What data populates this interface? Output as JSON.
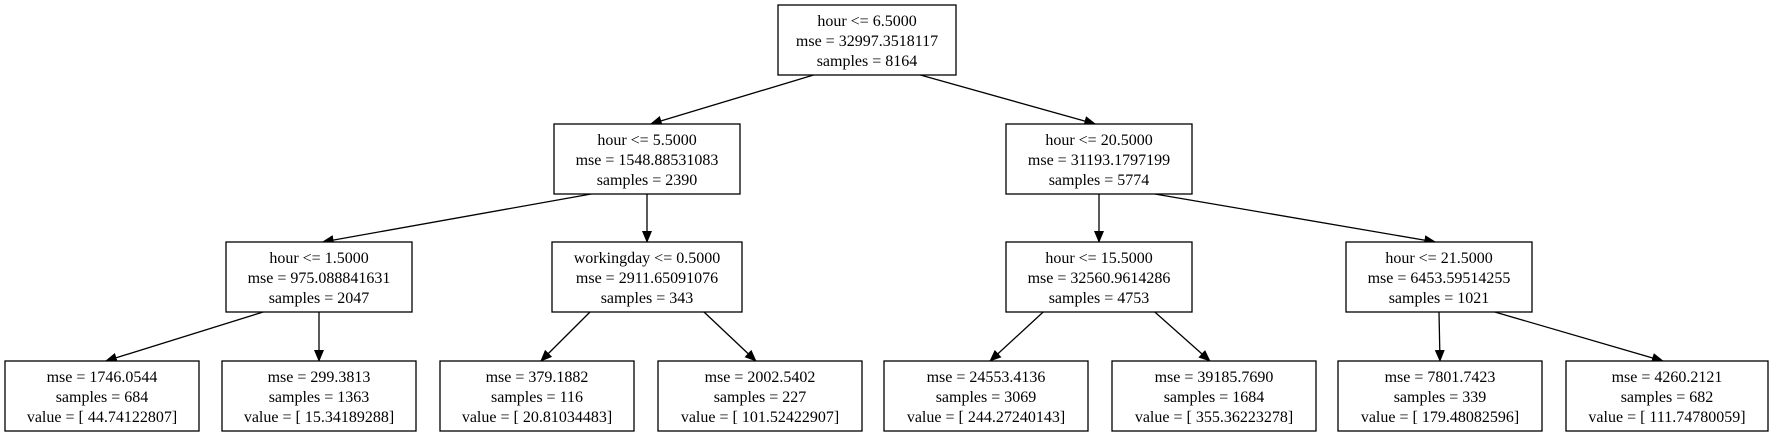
{
  "tree": {
    "nodes": [
      {
        "id": "n0",
        "lines": [
          "hour <= 6.5000",
          "mse = 32997.3518117",
          "samples = 8164"
        ]
      },
      {
        "id": "n1",
        "lines": [
          "hour <= 5.5000",
          "mse = 1548.88531083",
          "samples = 2390"
        ]
      },
      {
        "id": "n2",
        "lines": [
          "hour <= 20.5000",
          "mse = 31193.1797199",
          "samples = 5774"
        ]
      },
      {
        "id": "n3",
        "lines": [
          "hour <= 1.5000",
          "mse = 975.088841631",
          "samples = 2047"
        ]
      },
      {
        "id": "n4",
        "lines": [
          "workingday <= 0.5000",
          "mse = 2911.65091076",
          "samples = 343"
        ]
      },
      {
        "id": "n5",
        "lines": [
          "hour <= 15.5000",
          "mse = 32560.9614286",
          "samples = 4753"
        ]
      },
      {
        "id": "n6",
        "lines": [
          "hour <= 21.5000",
          "mse = 6453.59514255",
          "samples = 1021"
        ]
      },
      {
        "id": "n7",
        "lines": [
          "mse = 1746.0544",
          "samples = 684",
          "value = [ 44.74122807]"
        ]
      },
      {
        "id": "n8",
        "lines": [
          "mse = 299.3813",
          "samples = 1363",
          "value = [ 15.34189288]"
        ]
      },
      {
        "id": "n9",
        "lines": [
          "mse = 379.1882",
          "samples = 116",
          "value = [ 20.81034483]"
        ]
      },
      {
        "id": "n10",
        "lines": [
          "mse = 2002.5402",
          "samples = 227",
          "value = [ 101.52422907]"
        ]
      },
      {
        "id": "n11",
        "lines": [
          "mse = 24553.4136",
          "samples = 3069",
          "value = [ 244.27240143]"
        ]
      },
      {
        "id": "n12",
        "lines": [
          "mse = 39185.7690",
          "samples = 1684",
          "value = [ 355.36223278]"
        ]
      },
      {
        "id": "n13",
        "lines": [
          "mse = 7801.7423",
          "samples = 339",
          "value = [ 179.48082596]"
        ]
      },
      {
        "id": "n14",
        "lines": [
          "mse = 4260.2121",
          "samples = 682",
          "value = [ 111.74780059]"
        ]
      }
    ],
    "edges": [
      [
        "n0",
        "n1"
      ],
      [
        "n0",
        "n2"
      ],
      [
        "n1",
        "n3"
      ],
      [
        "n1",
        "n4"
      ],
      [
        "n2",
        "n5"
      ],
      [
        "n2",
        "n6"
      ],
      [
        "n3",
        "n7"
      ],
      [
        "n3",
        "n8"
      ],
      [
        "n4",
        "n9"
      ],
      [
        "n4",
        "n10"
      ],
      [
        "n5",
        "n11"
      ],
      [
        "n5",
        "n12"
      ],
      [
        "n6",
        "n13"
      ],
      [
        "n6",
        "n14"
      ]
    ]
  }
}
